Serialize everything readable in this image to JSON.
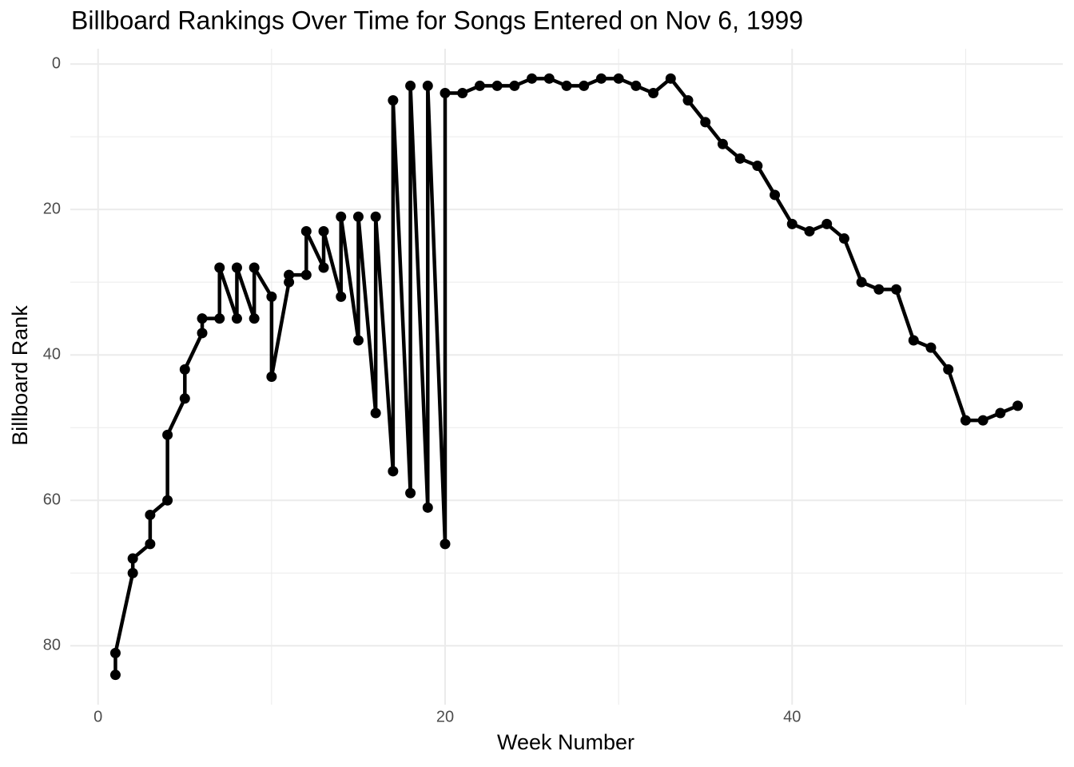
{
  "chart_data": {
    "type": "line",
    "title": "Billboard Rankings Over Time for Songs Entered on Nov 6, 1999",
    "x_label": "Week Number",
    "y_label": "Billboard Rank",
    "x": [
      1,
      1,
      2,
      2,
      3,
      3,
      4,
      4,
      5,
      5,
      6,
      6,
      7,
      7,
      8,
      8,
      9,
      9,
      10,
      10,
      11,
      11,
      12,
      12,
      13,
      13,
      14,
      14,
      15,
      15,
      16,
      16,
      17,
      17,
      18,
      18,
      19,
      19,
      20,
      20,
      21,
      22,
      23,
      24,
      25,
      26,
      27,
      28,
      29,
      30,
      31,
      32,
      33,
      34,
      35,
      36,
      37,
      38,
      39,
      40,
      41,
      42,
      43,
      44,
      45,
      46,
      47,
      48,
      49,
      50,
      51,
      52,
      53
    ],
    "series": [
      {
        "name": "Rank",
        "color": "#000000",
        "values": [
          84,
          81,
          70,
          68,
          66,
          62,
          60,
          51,
          46,
          42,
          37,
          35,
          35,
          28,
          35,
          28,
          35,
          28,
          32,
          43,
          30,
          29,
          29,
          23,
          28,
          23,
          32,
          21,
          38,
          21,
          48,
          21,
          56,
          5,
          59,
          3,
          61,
          3,
          66,
          4,
          4,
          3,
          3,
          3,
          2,
          2,
          3,
          3,
          2,
          2,
          3,
          4,
          2,
          5,
          8,
          11,
          13,
          14,
          18,
          22,
          23,
          22,
          24,
          30,
          31,
          31,
          38,
          39,
          42,
          49,
          49,
          48,
          47
        ]
      }
    ],
    "xlim": [
      -1.6,
      55.6
    ],
    "xticks": [
      0,
      20,
      40
    ],
    "x_minor_ticks": [
      10,
      30,
      50
    ],
    "ylim": [
      -2.1,
      88.1
    ],
    "yticks": [
      0,
      20,
      40,
      60,
      80
    ],
    "y_minor_ticks": [
      10,
      30,
      50,
      70
    ],
    "y_reversed": true,
    "grid": true
  }
}
